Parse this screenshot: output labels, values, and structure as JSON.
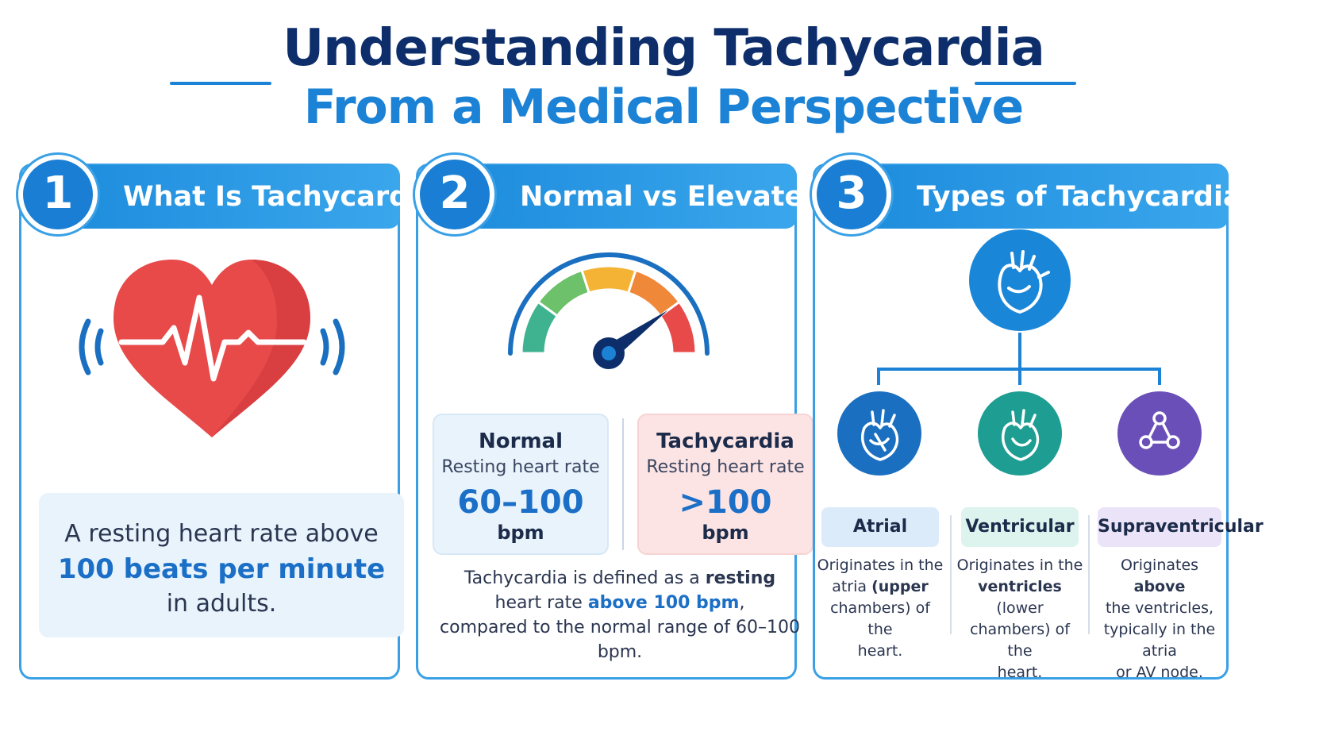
{
  "title": {
    "line1": "Understanding Tachycardia",
    "line2": "From a Medical Perspective"
  },
  "panels": [
    {
      "number": "1",
      "heading": "What Is Tachycardia",
      "definition": {
        "pre": "A resting heart rate above",
        "strong": "100 beats per minute",
        "post": "in adults."
      }
    },
    {
      "number": "2",
      "heading": "Normal vs Elevated",
      "gauge": {
        "min_bpm": 0,
        "max_bpm": 200,
        "needle_bpm": 160,
        "colors": [
          "#3fb28f",
          "#6cc16a",
          "#f5b335",
          "#f0883a",
          "#e84a4a"
        ]
      },
      "normal": {
        "title": "Normal",
        "subtitle": "Resting heart rate",
        "value": "60–100",
        "unit": "bpm"
      },
      "tachycardia": {
        "title": "Tachycardia",
        "subtitle": "Resting heart rate",
        "value": ">100",
        "unit": "bpm"
      },
      "note": {
        "part1": "Tachycardia is defined as a",
        "part2": "resting",
        "part3": "heart rate",
        "part4": "above 100 bpm",
        "part5": ",",
        "part6": "compared to the normal range of 60–100 bpm."
      }
    },
    {
      "number": "3",
      "heading": "Types of Tachycardia",
      "types": [
        {
          "label": "Atrial",
          "label_bg": "#dcebfa",
          "icon_bg": "#1a6fc0",
          "desc": {
            "a": "Originates in the",
            "b": "atria",
            "c": "(upper",
            "d": "chambers) of the",
            "e": "heart."
          }
        },
        {
          "label": "Ventricular",
          "label_bg": "#dcf3ee",
          "icon_bg": "#1e9d93",
          "desc": {
            "a": "Originates in the",
            "b": "ventricles",
            "c": "(lower",
            "d": "chambers) of the",
            "e": "heart."
          }
        },
        {
          "label": "Supraventricular",
          "label_bg": "#ebe3f7",
          "icon_bg": "#6a4fb8",
          "desc": {
            "a": "Originates",
            "b": "above",
            "c": "the ventricles,",
            "d": "typically in the atria",
            "e": "or AV node."
          }
        }
      ]
    }
  ],
  "colors": {
    "primary": "#1b82d6",
    "navy": "#0d2e6b",
    "heart": "#e84a4a"
  }
}
